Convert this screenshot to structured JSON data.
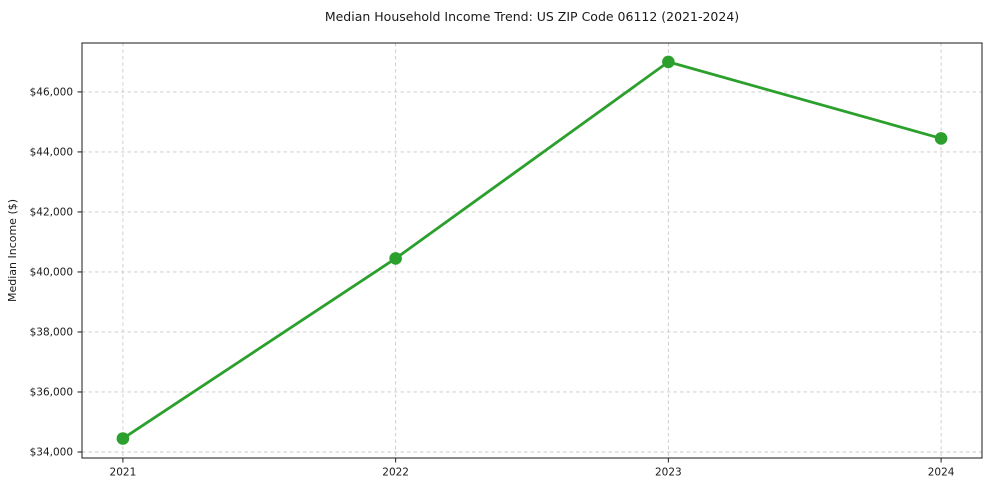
{
  "chart_data": {
    "type": "line",
    "title": "Median Household Income Trend: US ZIP Code 06112 (2021-2024)",
    "xlabel": "",
    "ylabel": "Median Income ($)",
    "x": [
      2021,
      2022,
      2023,
      2024
    ],
    "values": [
      34450,
      40450,
      47000,
      44450
    ],
    "xtick_labels": [
      "2021",
      "2022",
      "2023",
      "2024"
    ],
    "yticks": [
      34000,
      36000,
      38000,
      40000,
      42000,
      44000,
      46000
    ],
    "ytick_labels": [
      "$34,000",
      "$36,000",
      "$38,000",
      "$40,000",
      "$42,000",
      "$44,000",
      "$46,000"
    ],
    "xlim": [
      2020.85,
      2024.15
    ],
    "ylim": [
      33800,
      47630
    ],
    "grid": true,
    "legend_position": "none",
    "line_color": "#2ca02c",
    "marker": "o",
    "grid_color": "#c9c9c9",
    "axis_color": "#1a1a1a",
    "text_color": "#1a1a1a",
    "background_color": "#ffffff"
  }
}
